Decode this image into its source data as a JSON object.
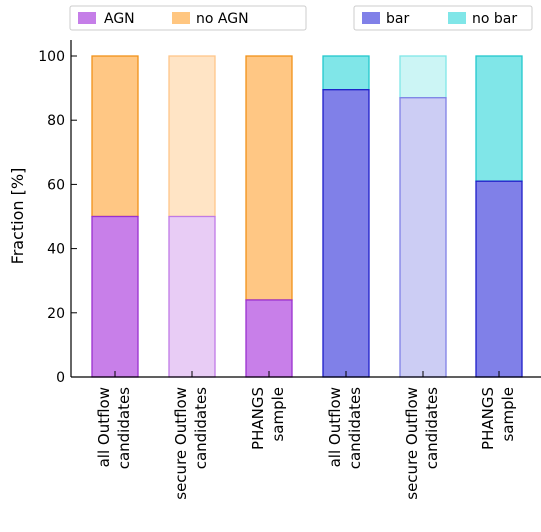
{
  "chart_data": {
    "type": "bar",
    "stacked": true,
    "ylabel": "Fraction [%]",
    "xlabel": "",
    "ylim": [
      0,
      100
    ],
    "yticks": [
      0,
      20,
      40,
      60,
      80,
      100
    ],
    "grid": false,
    "categories": [
      [
        "all Outflow",
        "candidates"
      ],
      [
        "secure Outflow",
        "candidates"
      ],
      [
        "PHANGS",
        "sample"
      ],
      [
        "all Outflow",
        "candidates"
      ],
      [
        "secure Outflow",
        "candidates"
      ],
      [
        "PHANGS",
        "sample"
      ]
    ],
    "legend_groups": [
      {
        "placement": "top-left",
        "entries": [
          {
            "name": "AGN",
            "color": "#c57ee8"
          },
          {
            "name": "no AGN",
            "color": "#ffc680"
          }
        ]
      },
      {
        "placement": "top-right",
        "entries": [
          {
            "name": "bar",
            "color": "#8080e8"
          },
          {
            "name": "no bar",
            "color": "#80e6e8"
          }
        ]
      }
    ],
    "bars": [
      {
        "lower": {
          "series": "AGN",
          "value": 50,
          "fill": "#c87fe9",
          "edge": "#9b30d0"
        },
        "upper": {
          "series": "no AGN",
          "value": 50,
          "fill": "#ffc784",
          "edge": "#f0921a"
        }
      },
      {
        "lower": {
          "series": "AGN",
          "value": 50,
          "fill": "#e8ccf5",
          "edge": "#c07ae6"
        },
        "upper": {
          "series": "no AGN",
          "value": 50,
          "fill": "#ffe4c5",
          "edge": "#ffc68a"
        }
      },
      {
        "lower": {
          "series": "AGN",
          "value": 24,
          "fill": "#c87fe9",
          "edge": "#9b30d0"
        },
        "upper": {
          "series": "no AGN",
          "value": 76,
          "fill": "#ffc784",
          "edge": "#f0921a"
        }
      },
      {
        "lower": {
          "series": "bar",
          "value": 89.5,
          "fill": "#8080e8",
          "edge": "#1e1ec8"
        },
        "upper": {
          "series": "no bar",
          "value": 10.5,
          "fill": "#80e6e8",
          "edge": "#22c8cc"
        }
      },
      {
        "lower": {
          "series": "bar",
          "value": 87,
          "fill": "#cccdf4",
          "edge": "#7f80e6"
        },
        "upper": {
          "series": "no bar",
          "value": 13,
          "fill": "#ccf5f5",
          "edge": "#7fe6e8"
        }
      },
      {
        "lower": {
          "series": "bar",
          "value": 61,
          "fill": "#8080e8",
          "edge": "#1e1ec8"
        },
        "upper": {
          "series": "no bar",
          "value": 39,
          "fill": "#80e6e8",
          "edge": "#22c8cc"
        }
      }
    ]
  }
}
